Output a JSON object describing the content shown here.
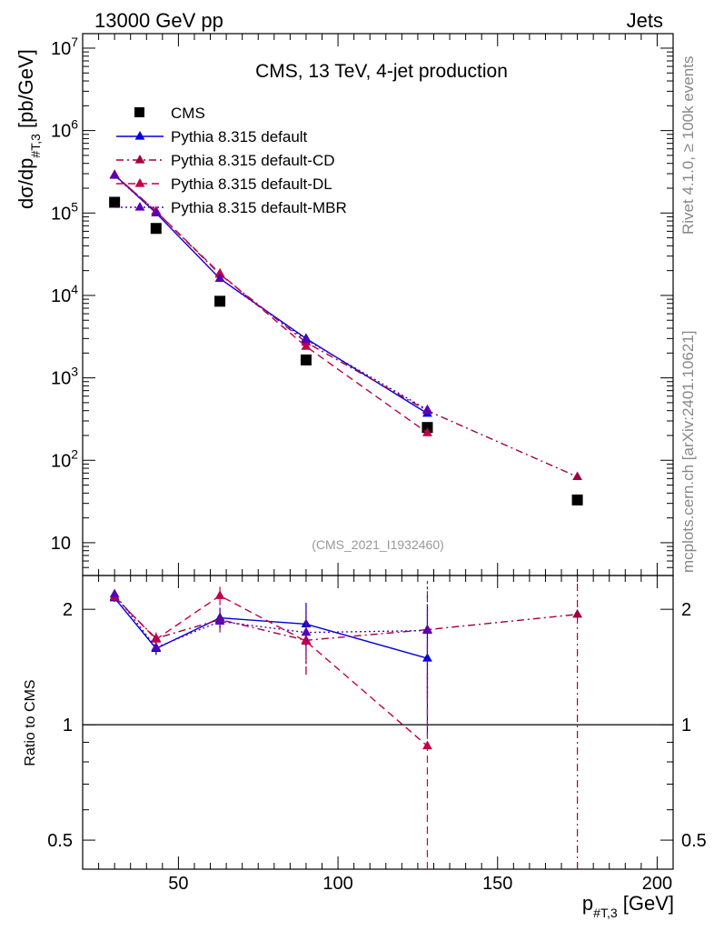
{
  "header": {
    "left": "13000 GeV pp",
    "right": "Jets"
  },
  "side_labels": {
    "top": "Rivet 4.1.0, ≥ 100k events",
    "bottom": "mcplots.cern.ch [arXiv:2401.10621]"
  },
  "chart_data": [
    {
      "type": "line",
      "panel": "main",
      "title": "CMS, 13 TeV, 4-jet production",
      "analysis_id": "(CMS_2021_I1932460)",
      "ylabel": "dσ/dp#T,3 [pb/GeV]",
      "ylabel_parts": {
        "a": "dσ/dp",
        "sub": "#T,3",
        "b": " [pb/GeV]"
      },
      "yscale": "log",
      "ylim": [
        4,
        15000000
      ],
      "xlim": [
        20,
        205
      ],
      "y_ticks": [
        {
          "value": 10,
          "base": "10",
          "exp": ""
        },
        {
          "value": 100,
          "base": "10",
          "exp": "2"
        },
        {
          "value": 1000,
          "base": "10",
          "exp": "3"
        },
        {
          "value": 10000,
          "base": "10",
          "exp": "4"
        },
        {
          "value": 100000,
          "base": "10",
          "exp": "5"
        },
        {
          "value": 1000000,
          "base": "10",
          "exp": "6"
        },
        {
          "value": 10000000,
          "base": "10",
          "exp": "7"
        }
      ],
      "legend": [
        {
          "name": "CMS",
          "color": "#000000",
          "marker": "square",
          "dash": "none"
        },
        {
          "name": "Pythia 8.315 default",
          "color": "#0000dd",
          "marker": "triangle",
          "dash": "solid"
        },
        {
          "name": "Pythia 8.315 default-CD",
          "color": "#a00040",
          "marker": "triangle",
          "dash": "dashdot"
        },
        {
          "name": "Pythia 8.315 default-DL",
          "color": "#c0004a",
          "marker": "triangle",
          "dash": "dashed"
        },
        {
          "name": "Pythia 8.315 default-MBR",
          "color": "#5500bb",
          "marker": "triangle",
          "dash": "dotted"
        }
      ],
      "series": [
        {
          "name": "CMS",
          "x": [
            30,
            43,
            63,
            90,
            128,
            175
          ],
          "y": [
            135000,
            65000,
            8500,
            1650,
            250,
            33
          ]
        },
        {
          "name": "Pythia 8.315 default",
          "x": [
            30,
            43,
            63,
            90,
            128
          ],
          "y": [
            290000,
            100000,
            16000,
            3000,
            370
          ]
        },
        {
          "name": "Pythia 8.315 default-CD",
          "x": [
            30,
            43,
            63,
            90,
            128,
            175
          ],
          "y": [
            290000,
            105000,
            18000,
            2700,
            400,
            63
          ]
        },
        {
          "name": "Pythia 8.315 default-DL",
          "x": [
            30,
            43,
            63,
            90,
            128
          ],
          "y": [
            290000,
            105000,
            18500,
            2400,
            215
          ]
        },
        {
          "name": "Pythia 8.315 default-MBR",
          "x": [
            30,
            43,
            63,
            90,
            128
          ],
          "y": [
            285000,
            100000,
            16000,
            2900,
            410
          ]
        }
      ]
    },
    {
      "type": "line",
      "panel": "ratio",
      "ylabel": "Ratio to CMS",
      "yscale": "log",
      "ylim": [
        0.42,
        2.45
      ],
      "xlim": [
        20,
        205
      ],
      "xlabel": "p#T,3 [GeV]",
      "xlabel_parts": {
        "a": "p",
        "sub": "#T,3",
        "b": " [GeV]"
      },
      "x_ticks": [
        {
          "value": 50,
          "label": "50"
        },
        {
          "value": 100,
          "label": "100"
        },
        {
          "value": 150,
          "label": "150"
        },
        {
          "value": 200,
          "label": "200"
        }
      ],
      "y_ticks": [
        {
          "value": 0.5,
          "label": "0.5"
        },
        {
          "value": 1,
          "label": "1"
        },
        {
          "value": 2,
          "label": "2"
        }
      ],
      "series": [
        {
          "name": "Pythia 8.315 default",
          "x": [
            30,
            43,
            63,
            90,
            128
          ],
          "y": [
            2.14,
            1.58,
            1.9,
            1.83,
            1.49
          ],
          "err": [
            0.05,
            0.06,
            0.12,
            0.25,
            0.55
          ]
        },
        {
          "name": "Pythia 8.315 default-CD",
          "x": [
            30,
            43,
            63,
            90,
            128,
            175
          ],
          "y": [
            2.15,
            1.68,
            1.88,
            1.66,
            1.77,
            1.94
          ],
          "err": [
            0.05,
            0.06,
            0.12,
            0.3,
            0.6,
            1.6
          ]
        },
        {
          "name": "Pythia 8.315 default-DL",
          "x": [
            30,
            43,
            63,
            90,
            128
          ],
          "y": [
            2.16,
            1.67,
            2.17,
            1.65,
            0.88
          ],
          "err": [
            0.05,
            0.06,
            0.12,
            0.3,
            0.5
          ]
        },
        {
          "name": "Pythia 8.315 default-MBR",
          "x": [
            30,
            43,
            63,
            90,
            128
          ],
          "y": [
            2.19,
            1.59,
            1.86,
            1.74,
            1.76
          ],
          "err": [
            0.05,
            0.06,
            0.12,
            0.3,
            0.55
          ]
        }
      ]
    }
  ]
}
